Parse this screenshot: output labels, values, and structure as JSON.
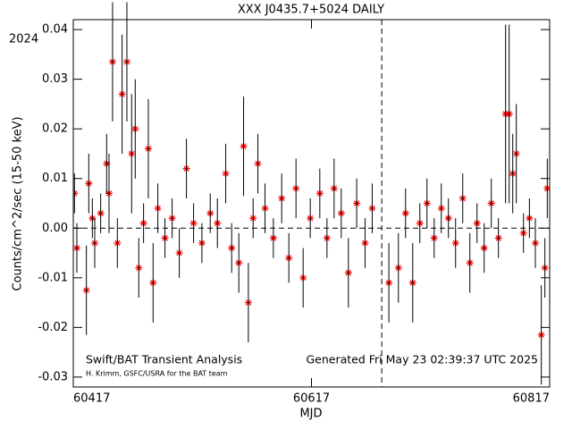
{
  "chart_data": {
    "type": "scatter",
    "title": "XXX J0435.7+5024 DAILY",
    "xlabel": "MJD",
    "ylabel": "Counts/cm^2/sec (15-50 keV)",
    "annotations": [
      "Swift/BAT Transient Analysis",
      "H. Krimm, GSFC/USRA for the BAT team",
      "Generated Fri May 23 02:39:37 UTC 2025"
    ],
    "year_label": "2024",
    "year_line": 60676,
    "zero_line": true,
    "xlim": [
      60417,
      60817
    ],
    "xticks": [
      60417,
      60617,
      60817
    ],
    "ylim": [
      -0.032,
      0.042
    ],
    "yticks": [
      -0.03,
      -0.02,
      -0.01,
      {
        "value": 0,
        "label": "0.00"
      },
      0.01,
      0.02,
      0.03,
      0.04
    ],
    "marker_color": "#ff0000",
    "errorbar_color": "#000000",
    "x": [
      60418,
      60420,
      60428,
      60430,
      60433,
      60435,
      60440,
      60445,
      60447,
      60450,
      60454,
      60458,
      60462,
      60466,
      60469,
      60472,
      60476,
      60480,
      60484,
      60488,
      60494,
      60500,
      60506,
      60512,
      60518,
      60525,
      60532,
      60538,
      60545,
      60550,
      60556,
      60560,
      60564,
      60568,
      60572,
      60578,
      60585,
      60592,
      60598,
      60604,
      60610,
      60616,
      60624,
      60630,
      60636,
      60642,
      60648,
      60655,
      60662,
      60668,
      60682,
      60690,
      60696,
      60702,
      60708,
      60714,
      60720,
      60726,
      60732,
      60738,
      60744,
      60750,
      60756,
      60762,
      60768,
      60774,
      60780,
      60783,
      60786,
      60789,
      60795,
      60800,
      60805,
      60810,
      60813,
      60815
    ],
    "values": [
      0.007,
      -0.004,
      -0.0125,
      0.009,
      0.002,
      -0.003,
      0.003,
      0.013,
      0.007,
      0.0335,
      -0.003,
      0.027,
      0.0335,
      0.015,
      0.02,
      -0.008,
      0.001,
      0.016,
      -0.011,
      0.004,
      -0.002,
      0.002,
      -0.005,
      0.012,
      0.001,
      -0.003,
      0.003,
      0.001,
      0.011,
      -0.004,
      -0.007,
      0.0165,
      -0.015,
      0.002,
      0.013,
      0.004,
      -0.002,
      0.006,
      -0.006,
      0.008,
      -0.01,
      0.002,
      0.007,
      -0.002,
      0.008,
      0.003,
      -0.009,
      0.005,
      -0.003,
      0.004,
      -0.011,
      -0.008,
      0.003,
      -0.011,
      0.001,
      0.005,
      -0.002,
      0.004,
      0.002,
      -0.003,
      0.006,
      -0.007,
      0.001,
      -0.004,
      0.005,
      -0.002,
      0.023,
      0.023,
      0.011,
      0.015,
      -0.001,
      0.002,
      -0.003,
      -0.0215,
      -0.008,
      0.008
    ],
    "errors": [
      0.004,
      0.005,
      0.009,
      0.006,
      0.004,
      0.005,
      0.004,
      0.006,
      0.008,
      0.012,
      0.005,
      0.012,
      0.012,
      0.012,
      0.01,
      0.006,
      0.004,
      0.01,
      0.008,
      0.005,
      0.004,
      0.004,
      0.005,
      0.006,
      0.004,
      0.004,
      0.004,
      0.005,
      0.006,
      0.005,
      0.006,
      0.01,
      0.008,
      0.004,
      0.006,
      0.005,
      0.004,
      0.005,
      0.005,
      0.006,
      0.006,
      0.004,
      0.005,
      0.004,
      0.006,
      0.005,
      0.007,
      0.005,
      0.005,
      0.005,
      0.008,
      0.007,
      0.005,
      0.008,
      0.004,
      0.005,
      0.004,
      0.005,
      0.004,
      0.005,
      0.005,
      0.006,
      0.004,
      0.005,
      0.005,
      0.004,
      0.018,
      0.018,
      0.008,
      0.01,
      0.004,
      0.004,
      0.005,
      0.01,
      0.006,
      0.006
    ]
  }
}
